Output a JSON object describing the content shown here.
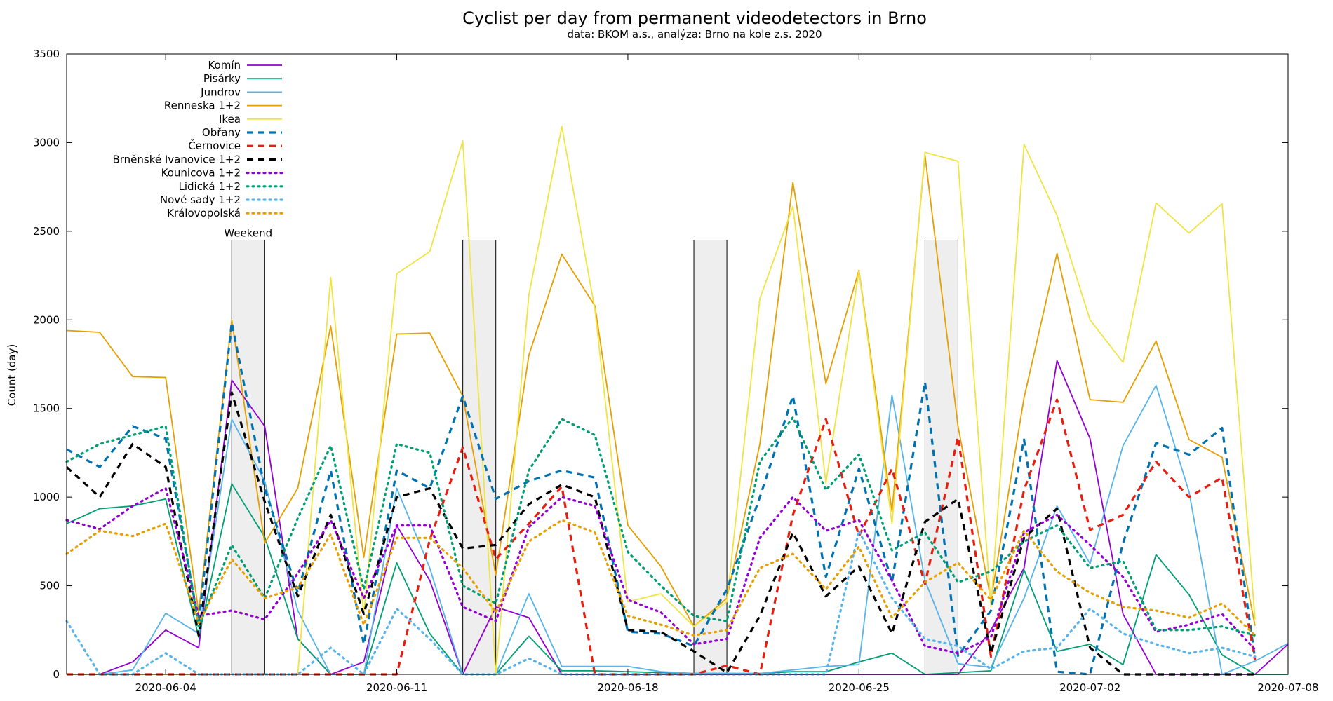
{
  "chart_data": {
    "type": "line",
    "title": "Cyclist per day from permanent videodetectors in Brno",
    "subtitle": "data: BKOM a.s., analýza: Brno na kole z.s. 2020",
    "ylabel": "Count (day)",
    "xlabel": "",
    "ylim": [
      0,
      3500
    ],
    "yticks": [
      0,
      500,
      1000,
      1500,
      2000,
      2500,
      3000,
      3500
    ],
    "x_start": "2020-06-01",
    "xlim_days": [
      0,
      37
    ],
    "xticks": [
      {
        "day": 3,
        "label": "2020-06-04"
      },
      {
        "day": 10,
        "label": "2020-06-11"
      },
      {
        "day": 17,
        "label": "2020-06-18"
      },
      {
        "day": 24,
        "label": "2020-06-25"
      },
      {
        "day": 31,
        "label": "2020-07-02"
      },
      {
        "day": 37,
        "label": "2020-07-08"
      }
    ],
    "grid": false,
    "legend_position": "top-left",
    "weekend_label": "Weekend",
    "weekend_height": 2450,
    "weekends": [
      [
        5,
        6
      ],
      [
        12,
        13
      ],
      [
        19,
        20
      ],
      [
        26,
        27
      ]
    ],
    "series": [
      {
        "name": "Komín",
        "color": "#9400d3",
        "dash": "solid",
        "values": [
          0,
          0,
          70,
          250,
          150,
          1660,
          1400,
          200,
          0,
          70,
          840,
          530,
          0,
          380,
          320,
          0,
          0,
          0,
          0,
          0,
          0,
          0,
          0,
          0,
          0,
          0,
          0,
          0,
          250,
          600,
          1770,
          1330,
          340,
          0,
          0,
          0,
          0,
          170
        ]
      },
      {
        "name": "Pisárky",
        "color": "#009e73",
        "dash": "solid",
        "values": [
          850,
          935,
          950,
          990,
          210,
          1075,
          775,
          200,
          0,
          0,
          630,
          230,
          0,
          0,
          215,
          20,
          20,
          15,
          10,
          5,
          5,
          5,
          15,
          15,
          70,
          120,
          0,
          10,
          20,
          590,
          130,
          170,
          55,
          675,
          450,
          110,
          0,
          0
        ]
      },
      {
        "name": "Jundrov",
        "color": "#56b4e9",
        "dash": "solid",
        "values": [
          0,
          0,
          25,
          345,
          230,
          1440,
          1090,
          360,
          0,
          0,
          1050,
          600,
          0,
          0,
          455,
          45,
          45,
          45,
          15,
          5,
          5,
          5,
          25,
          45,
          55,
          1575,
          530,
          60,
          40,
          430,
          950,
          625,
          1290,
          1630,
          1030,
          0,
          75,
          175
        ]
      },
      {
        "name": "Renneska 1+2",
        "color": "#e69f00",
        "dash": "solid",
        "values": [
          1940,
          1930,
          1680,
          1675,
          350,
          2000,
          740,
          1050,
          1965,
          660,
          1920,
          1925,
          1570,
          560,
          1800,
          2370,
          2080,
          840,
          610,
          270,
          430,
          1300,
          2775,
          1640,
          2280,
          920,
          2930,
          1400,
          420,
          1560,
          2375,
          1550,
          1535,
          1880,
          1325,
          1225,
          275
        ]
      },
      {
        "name": "Ikea",
        "color": "#f0e442",
        "dash": "solid",
        "values": [
          0,
          0,
          0,
          0,
          0,
          0,
          0,
          0,
          2240,
          340,
          2260,
          2385,
          3010,
          0,
          2140,
          3090,
          2060,
          410,
          455,
          270,
          410,
          2120,
          2640,
          1080,
          2275,
          850,
          2945,
          2895,
          380,
          2990,
          2590,
          2000,
          1760,
          2660,
          2490,
          2655,
          310
        ]
      },
      {
        "name": "Obřany",
        "color": "#0072b2",
        "dash": "dash",
        "values": [
          1270,
          1170,
          1400,
          1330,
          290,
          1985,
          1050,
          460,
          1150,
          170,
          1150,
          1050,
          1570,
          990,
          1090,
          1150,
          1110,
          240,
          230,
          160,
          480,
          1000,
          1570,
          550,
          1160,
          520,
          1650,
          105,
          360,
          1325,
          15,
          0,
          740,
          1305,
          1240,
          1390,
          90
        ]
      },
      {
        "name": "Černovice",
        "color": "#e51e10",
        "dash": "dash",
        "values": [
          0,
          0,
          0,
          0,
          0,
          0,
          0,
          0,
          0,
          0,
          0,
          760,
          1280,
          650,
          850,
          1060,
          0,
          0,
          0,
          0,
          50,
          0,
          900,
          1440,
          780,
          1160,
          510,
          1340,
          100,
          1040,
          1550,
          815,
          900,
          1200,
          1000,
          1110,
          80
        ]
      },
      {
        "name": "Brněnské Ivanovice 1+2",
        "color": "#000000",
        "dash": "dash",
        "values": [
          1170,
          1000,
          1300,
          1170,
          220,
          1590,
          975,
          440,
          900,
          340,
          1000,
          1050,
          710,
          730,
          960,
          1070,
          1000,
          250,
          240,
          130,
          10,
          330,
          800,
          440,
          610,
          230,
          860,
          990,
          120,
          770,
          935,
          150,
          0,
          0,
          0,
          0,
          0
        ]
      },
      {
        "name": "Kounicova 1+2",
        "color": "#9400d3",
        "dash": "dot",
        "values": [
          870,
          820,
          950,
          1050,
          330,
          360,
          310,
          570,
          870,
          430,
          840,
          840,
          380,
          300,
          830,
          1000,
          950,
          420,
          350,
          170,
          200,
          770,
          1000,
          810,
          870,
          530,
          160,
          120,
          210,
          800,
          900,
          730,
          550,
          240,
          280,
          340,
          140
        ]
      },
      {
        "name": "Lidická 1+2",
        "color": "#009e73",
        "dash": "dot",
        "values": [
          1200,
          1300,
          1350,
          1400,
          270,
          730,
          430,
          880,
          1290,
          480,
          1300,
          1250,
          500,
          400,
          1150,
          1440,
          1350,
          690,
          500,
          330,
          300,
          1200,
          1450,
          1040,
          1240,
          700,
          800,
          520,
          580,
          750,
          840,
          600,
          640,
          250,
          250,
          270,
          220
        ]
      },
      {
        "name": "Nové sady 1+2",
        "color": "#56b4e9",
        "dash": "dot",
        "values": [
          300,
          0,
          0,
          120,
          0,
          0,
          0,
          0,
          150,
          0,
          370,
          200,
          0,
          0,
          90,
          0,
          0,
          0,
          0,
          0,
          0,
          0,
          0,
          0,
          810,
          430,
          200,
          160,
          30,
          130,
          150,
          370,
          230,
          170,
          120,
          150,
          100
        ]
      },
      {
        "name": "Královopolská",
        "color": "#e69f00",
        "dash": "dot",
        "values": [
          680,
          810,
          780,
          850,
          290,
          650,
          430,
          490,
          790,
          280,
          770,
          770,
          600,
          350,
          750,
          870,
          800,
          330,
          280,
          220,
          250,
          600,
          680,
          480,
          720,
          320,
          520,
          630,
          420,
          810,
          580,
          460,
          380,
          360,
          320,
          400,
          220
        ]
      }
    ]
  }
}
